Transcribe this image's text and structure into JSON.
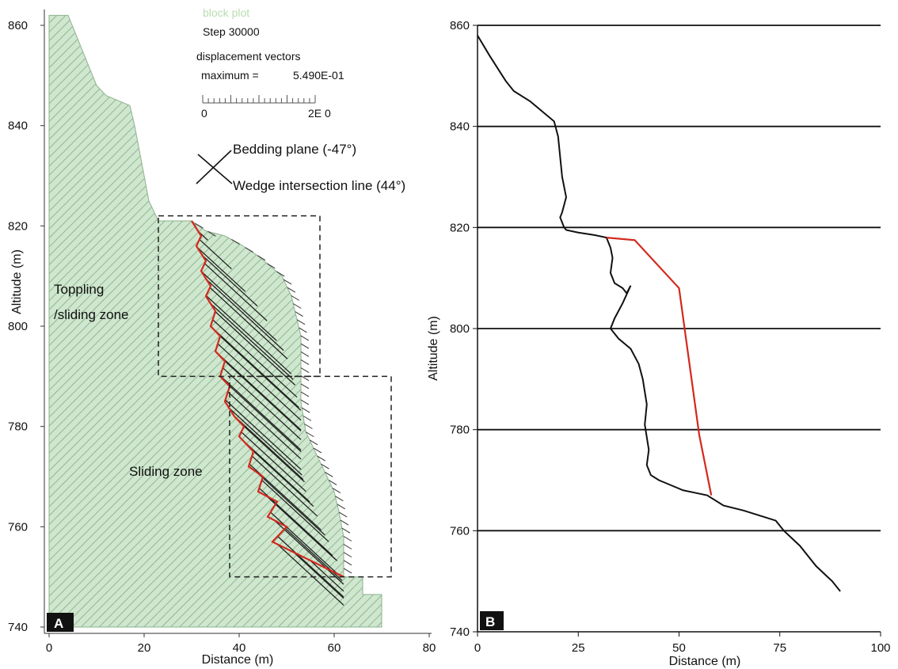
{
  "chart_data": [
    {
      "panel": "A",
      "type": "line",
      "xlabel": "Distance (m)",
      "ylabel": "Altitude (m)",
      "xlim": [
        0,
        80
      ],
      "ylim": [
        740,
        862
      ],
      "x_ticks": [
        "0",
        "20",
        "40",
        "60",
        "80"
      ],
      "y_ticks": [
        "860",
        "840",
        "820",
        "800",
        "780",
        "760",
        "740"
      ],
      "legend": {
        "title": "block plot",
        "step": "Step 30000",
        "vectors": "displacement vectors",
        "maximum_label": "maximum =",
        "maximum_value": "5.490E-01",
        "scale_min": "0",
        "scale_max": "2E 0"
      },
      "annotations": {
        "bedding": "Bedding plane (-47°)",
        "wedge": "Wedge intersection line (44°)",
        "toppling_1": "Toppling",
        "toppling_2": "/sliding  zone",
        "sliding": "Sliding zone",
        "panel_label": "A"
      },
      "slope_profile": {
        "x": [
          0,
          4,
          10,
          12,
          17,
          18,
          20,
          21,
          23,
          30,
          33,
          37,
          40,
          44,
          49,
          51,
          52,
          53,
          53,
          53,
          54,
          56,
          58,
          60,
          61,
          62,
          62,
          66,
          66,
          70,
          70
        ],
        "y": [
          862,
          862,
          848,
          846,
          844,
          840,
          830,
          825,
          821,
          821,
          819,
          818,
          816.5,
          814,
          810,
          806,
          802,
          798,
          791,
          785,
          779,
          775,
          771,
          767,
          763,
          758,
          750,
          750,
          746.5,
          746.5,
          740
        ]
      },
      "failure_surface": {
        "color": "#d4281c",
        "x": [
          30,
          32,
          31,
          33,
          32,
          34,
          33,
          35,
          34,
          36,
          35,
          37,
          36,
          38,
          37,
          39,
          41,
          40,
          43,
          42,
          45,
          44,
          48,
          46,
          50,
          47,
          62
        ],
        "y": [
          821,
          818,
          816,
          813,
          811,
          808,
          806,
          803,
          800,
          798,
          795,
          793,
          790,
          788,
          785,
          782,
          780,
          778,
          775,
          772,
          770,
          767,
          765,
          762,
          760,
          757,
          750
        ]
      },
      "toppling_box": {
        "x": [
          23,
          57
        ],
        "y": [
          790,
          822
        ]
      },
      "sliding_box": {
        "x": [
          38,
          72
        ],
        "y": [
          750,
          790
        ]
      }
    },
    {
      "panel": "B",
      "type": "line",
      "xlabel": "Distance (m)",
      "ylabel": "Altitude (m)",
      "xlim": [
        0,
        100
      ],
      "ylim": [
        740,
        860
      ],
      "x_ticks": [
        "0",
        "25",
        "50",
        "75",
        "100"
      ],
      "y_ticks": [
        "860",
        "840",
        "820",
        "800",
        "780",
        "760",
        "740"
      ],
      "grid": "horizontal",
      "panel_label": "B",
      "series": [
        {
          "color": "#111111",
          "x": [
            0,
            3,
            7,
            9,
            13,
            16,
            19,
            20,
            20.5,
            21,
            22,
            21,
            20.5,
            21.5,
            22,
            25,
            29,
            32,
            33,
            33.5,
            33,
            34,
            36,
            37,
            38,
            36,
            34,
            33,
            35,
            38,
            40,
            41,
            42,
            41.5,
            42.5,
            42,
            43,
            45,
            48,
            51,
            54,
            57,
            61,
            66,
            70,
            74,
            76,
            80,
            84,
            88,
            90
          ],
          "y": [
            858,
            854,
            849,
            847,
            845,
            843,
            841,
            838,
            834,
            830,
            826,
            823,
            822,
            820,
            819.5,
            819,
            818.5,
            818,
            816,
            814,
            811,
            809,
            808,
            807,
            808.5,
            805,
            802,
            800,
            798,
            796,
            793,
            790,
            785,
            781,
            776,
            773,
            771,
            770,
            769,
            768,
            767.5,
            767,
            765,
            764,
            763,
            762,
            760,
            757,
            753,
            750,
            748
          ]
        },
        {
          "color": "#d4281c",
          "x": [
            32,
            39,
            50,
            55,
            58
          ],
          "y": [
            818,
            817.5,
            808,
            779,
            767
          ]
        }
      ]
    }
  ]
}
